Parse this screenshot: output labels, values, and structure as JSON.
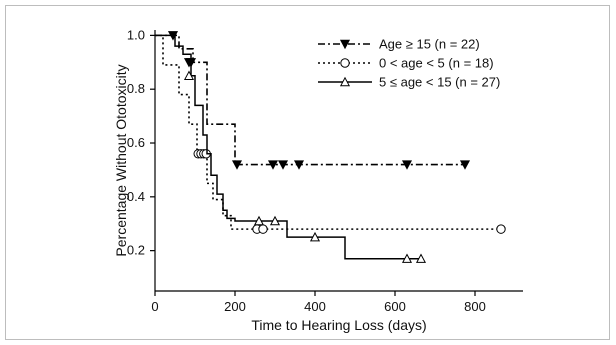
{
  "chart_data": {
    "type": "line",
    "chart_style": "kaplan-meier step survival curves with censor markers",
    "xlabel": "Time to Hearing Loss (days)",
    "ylabel": "Percentage Without Ototoxicity",
    "xlim": [
      0,
      920
    ],
    "ylim": [
      0.05,
      1.02
    ],
    "xticks": [
      0,
      200,
      400,
      600,
      800
    ],
    "yticks": [
      0.2,
      0.4,
      0.6,
      0.8,
      1.0
    ],
    "xtick_labels": [
      "0",
      "200",
      "400",
      "600",
      "800"
    ],
    "ytick_labels": [
      "0.2",
      "0.4",
      "0.6",
      "0.8",
      "1.0"
    ],
    "legend_position": "top-right",
    "grid": false,
    "series": [
      {
        "name": "Age ≥ 15 (n = 22)",
        "line_style": "dash-dot",
        "marker": "filled-down-triangle",
        "color": "#000000",
        "steps": [
          [
            0,
            1.0
          ],
          [
            60,
            0.95
          ],
          [
            95,
            0.9
          ],
          [
            130,
            0.67
          ],
          [
            200,
            0.52
          ],
          [
            780,
            0.52
          ]
        ],
        "censored": [
          [
            45,
            1.0
          ],
          [
            85,
            0.9
          ],
          [
            90,
            0.9
          ],
          [
            205,
            0.52
          ],
          [
            295,
            0.52
          ],
          [
            320,
            0.52
          ],
          [
            360,
            0.52
          ],
          [
            630,
            0.52
          ],
          [
            775,
            0.52
          ]
        ]
      },
      {
        "name": "0 < age < 5 (n = 18)",
        "line_style": "dotted",
        "marker": "open-circle",
        "color": "#000000",
        "steps": [
          [
            0,
            1.0
          ],
          [
            20,
            0.89
          ],
          [
            60,
            0.78
          ],
          [
            85,
            0.67
          ],
          [
            105,
            0.56
          ],
          [
            130,
            0.45
          ],
          [
            145,
            0.39
          ],
          [
            170,
            0.33
          ],
          [
            190,
            0.28
          ],
          [
            870,
            0.28
          ]
        ],
        "censored": [
          [
            108,
            0.56
          ],
          [
            115,
            0.56
          ],
          [
            122,
            0.56
          ],
          [
            128,
            0.56
          ],
          [
            255,
            0.28
          ],
          [
            270,
            0.28
          ],
          [
            865,
            0.28
          ]
        ]
      },
      {
        "name": "5 ≤ age < 15 (n = 27)",
        "line_style": "solid",
        "marker": "open-up-triangle",
        "color": "#000000",
        "steps": [
          [
            0,
            1.0
          ],
          [
            50,
            0.96
          ],
          [
            70,
            0.93
          ],
          [
            90,
            0.85
          ],
          [
            100,
            0.74
          ],
          [
            120,
            0.63
          ],
          [
            130,
            0.56
          ],
          [
            140,
            0.48
          ],
          [
            155,
            0.41
          ],
          [
            170,
            0.35
          ],
          [
            180,
            0.32
          ],
          [
            200,
            0.31
          ],
          [
            330,
            0.25
          ],
          [
            475,
            0.17
          ],
          [
            665,
            0.17
          ]
        ],
        "censored": [
          [
            85,
            0.85
          ],
          [
            260,
            0.31
          ],
          [
            300,
            0.31
          ],
          [
            400,
            0.25
          ],
          [
            630,
            0.17
          ],
          [
            665,
            0.17
          ]
        ]
      }
    ]
  }
}
